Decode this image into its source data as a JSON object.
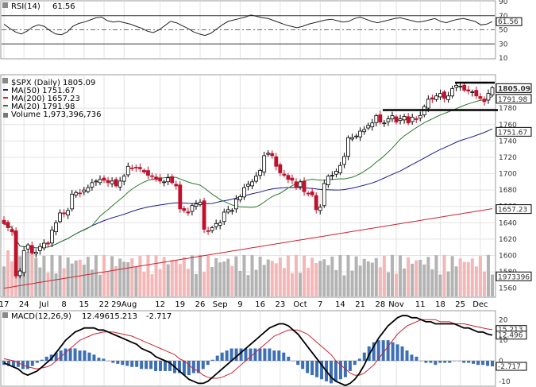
{
  "chart_data": [
    {
      "type": "line",
      "panel": "rsi",
      "label": "RSI(14)",
      "value_label": "61.56",
      "value_box": "61.56",
      "ylim": [
        10,
        90
      ],
      "yticks": [
        "90",
        "70",
        "50",
        "30",
        "10"
      ],
      "reference_lines": [
        70,
        50,
        30
      ],
      "series": [
        {
          "name": "RSI(14)",
          "values": [
            58,
            52,
            47,
            44,
            48,
            54,
            57,
            55,
            49,
            44,
            43,
            47,
            55,
            59,
            61,
            64,
            67,
            68,
            63,
            61,
            62,
            60,
            58,
            55,
            52,
            48,
            46,
            50,
            56,
            62,
            60,
            56,
            52,
            47,
            44,
            42,
            45,
            51,
            57,
            62,
            64,
            66,
            68,
            71,
            69,
            67,
            66,
            63,
            60,
            57,
            55,
            53,
            55,
            58,
            60,
            62,
            64,
            65,
            63,
            61,
            62,
            66,
            68,
            65,
            62,
            60,
            62,
            64,
            66,
            67,
            65,
            63,
            61,
            62,
            64,
            66,
            62,
            60,
            63,
            65,
            66,
            64,
            62,
            57,
            58,
            61.56
          ]
        }
      ]
    },
    {
      "type": "candlestick",
      "panel": "price",
      "label": "$SPX (Daily) 1805.09",
      "legend": [
        {
          "name": "MA(50) 1751.67",
          "color": "#1a1a8c"
        },
        {
          "name": "MA(200) 1657.23",
          "color": "#cc2233"
        },
        {
          "name": "MA(20) 1791.98",
          "color": "#2a7a2a"
        },
        {
          "name": "Volume 1,973,396,736",
          "color": "#777777"
        }
      ],
      "ylim": [
        1550,
        1820
      ],
      "yticks": [
        "1780",
        "1760",
        "1740",
        "1720",
        "1700",
        "1680",
        "1660",
        "1640",
        "1620",
        "1600",
        "1580",
        "1560"
      ],
      "vol_ylim": [
        0,
        4000000000
      ],
      "value_boxes": [
        {
          "label": "1805.09",
          "value": 1805.09,
          "bold": true
        },
        {
          "label": "1791.98",
          "value": 1791.98
        },
        {
          "label": "1751.67",
          "value": 1751.67
        },
        {
          "label": "1657.23",
          "value": 1657.23
        },
        {
          "label": "1973396",
          "value": 1575
        }
      ],
      "x_labels": [
        "17",
        "24",
        "Jul",
        "8",
        "15",
        "22",
        "29Aug",
        "12",
        "19",
        "26",
        "Sep",
        "9",
        "16",
        "23",
        "Oct",
        "7",
        "14",
        "21",
        "28",
        "Nov",
        "11",
        "18",
        "25",
        "Dec"
      ],
      "x_label_index": [
        0,
        5,
        10,
        15,
        20,
        25,
        30,
        39,
        44,
        49,
        54,
        59,
        64,
        69,
        74,
        79,
        84,
        89,
        94,
        98,
        104,
        109,
        114,
        119
      ],
      "close": [
        1639,
        1634,
        1629,
        1575,
        1581,
        1606,
        1613,
        1603,
        1604,
        1611,
        1615,
        1614,
        1631,
        1640,
        1652,
        1651,
        1655,
        1675,
        1677,
        1676,
        1680,
        1683,
        1689,
        1691,
        1693,
        1692,
        1689,
        1691,
        1685,
        1691,
        1697,
        1709,
        1707,
        1707,
        1706,
        1702,
        1698,
        1697,
        1693,
        1691,
        1690,
        1695,
        1689,
        1685,
        1657,
        1655,
        1652,
        1661,
        1663,
        1665,
        1632,
        1630,
        1634,
        1639,
        1640,
        1653,
        1656,
        1655,
        1669,
        1672,
        1683,
        1687,
        1690,
        1697,
        1704,
        1722,
        1725,
        1722,
        1709,
        1701,
        1698,
        1693,
        1692,
        1683,
        1690,
        1678,
        1676,
        1674,
        1656,
        1659,
        1688,
        1697,
        1698,
        1703,
        1710,
        1721,
        1744,
        1744,
        1746,
        1752,
        1754,
        1759,
        1762,
        1771,
        1763,
        1762,
        1767,
        1771,
        1763,
        1767,
        1770,
        1762,
        1769,
        1767,
        1771,
        1782,
        1791,
        1791,
        1795,
        1798,
        1792,
        1795,
        1804,
        1808,
        1807,
        1802,
        1801,
        1800,
        1795,
        1792,
        1788,
        1798,
        1805.09
      ]
    },
    {
      "type": "line",
      "panel": "macd",
      "label": "MACD(12,26,9)",
      "label_values": [
        {
          "text": "12.496",
          "color": "#000000"
        },
        {
          "text": "15.213",
          "color": "#cc2233"
        },
        {
          "text": "-2.717",
          "color": "#3d6fb5"
        }
      ],
      "ylim": [
        -12,
        24
      ],
      "yticks": [
        "20",
        "10",
        "0",
        "-10"
      ],
      "value_boxes": [
        {
          "label": "15.213",
          "value": 15.213
        },
        {
          "label": "12.496",
          "value": 12.496
        },
        {
          "label": "-2.717",
          "value": -2.717
        }
      ],
      "series": [
        {
          "name": "MACD",
          "values": [
            -1,
            -2,
            -3,
            -4,
            -6,
            -7,
            -6,
            -5,
            -3,
            -1,
            1,
            4,
            7,
            10,
            12,
            14,
            15,
            16,
            16,
            16,
            15,
            15,
            14,
            13,
            12,
            11,
            10,
            9,
            8,
            6,
            5,
            4,
            2,
            1,
            0,
            -1,
            -3,
            -5,
            -7,
            -9,
            -10,
            -11,
            -11,
            -10,
            -8,
            -6,
            -4,
            -2,
            0,
            2,
            4,
            6,
            8,
            10,
            12,
            14,
            16,
            17,
            18,
            18,
            17,
            15,
            13,
            10,
            7,
            4,
            1,
            -2,
            -5,
            -8,
            -10,
            -11,
            -12,
            -11,
            -9,
            -6,
            -2,
            3,
            7,
            11,
            14,
            17,
            19,
            21,
            22,
            22,
            21,
            21,
            20,
            19,
            19,
            18,
            18,
            18,
            18,
            18,
            17,
            16,
            16,
            15,
            14,
            14,
            13,
            12.496
          ]
        },
        {
          "name": "Signal",
          "values": [
            1,
            0.5,
            0,
            -1,
            -2,
            -3,
            -3.5,
            -4,
            -3.5,
            -3,
            -2,
            0,
            2,
            4,
            6,
            8,
            10,
            11,
            12,
            13,
            13.5,
            14,
            14,
            14,
            13.5,
            13,
            12.5,
            12,
            11,
            10,
            9,
            8,
            7,
            6,
            5,
            4,
            3,
            1,
            0,
            -2,
            -4,
            -5,
            -7,
            -8,
            -8.5,
            -8.5,
            -8,
            -7,
            -6,
            -4,
            -2,
            0,
            2,
            4,
            6,
            8,
            10,
            12,
            13,
            14,
            15,
            15,
            15,
            14,
            13,
            11,
            9,
            7,
            5,
            3,
            0,
            -2,
            -4,
            -6,
            -7,
            -7,
            -6,
            -4,
            -2,
            1,
            4,
            7,
            10,
            13,
            15,
            17,
            18,
            19,
            20,
            20,
            20,
            20,
            19,
            19,
            19,
            18,
            18,
            18,
            17.5,
            17,
            16.5,
            16,
            15.5,
            15.213
          ]
        },
        {
          "name": "Histogram",
          "values": [
            -2,
            -2.5,
            -3,
            -3,
            -4,
            -4,
            -2.5,
            -1,
            0.5,
            2,
            3,
            4,
            5,
            6,
            6,
            6,
            5,
            5,
            4,
            3,
            1.5,
            1,
            0,
            -1,
            -1.5,
            -2,
            -2.5,
            -3,
            -3,
            -4,
            -4,
            -4,
            -5,
            -5,
            -5,
            -5,
            -6,
            -6,
            -7,
            -7,
            -6,
            -6,
            -4,
            -2,
            0.5,
            2.5,
            4,
            5,
            6,
            6,
            6,
            6,
            6,
            6,
            6,
            6,
            6,
            5,
            5,
            4,
            2,
            0,
            -2,
            -4,
            -6,
            -7,
            -8,
            -9,
            -10,
            -11,
            -10,
            -9,
            -8,
            -5,
            -2,
            1,
            4,
            7,
            9,
            10,
            10,
            10,
            9,
            8,
            7,
            5,
            3,
            2,
            0,
            -1,
            -1,
            -2,
            -1,
            -1,
            -1,
            0,
            0,
            -1,
            -1,
            -1.5,
            -2,
            -2,
            -2.5,
            -2.717
          ]
        }
      ]
    }
  ],
  "colors": {
    "up": "#000000",
    "down": "#c0102a",
    "vol_up": "#b3b3b3",
    "vol_down": "#f4b6b6",
    "ma50": "#1a1a8c",
    "ma200": "#cc2233",
    "ma20": "#2a7a2a",
    "hist": "#3d6fb5",
    "macd": "#000000",
    "signal": "#cc2233"
  }
}
